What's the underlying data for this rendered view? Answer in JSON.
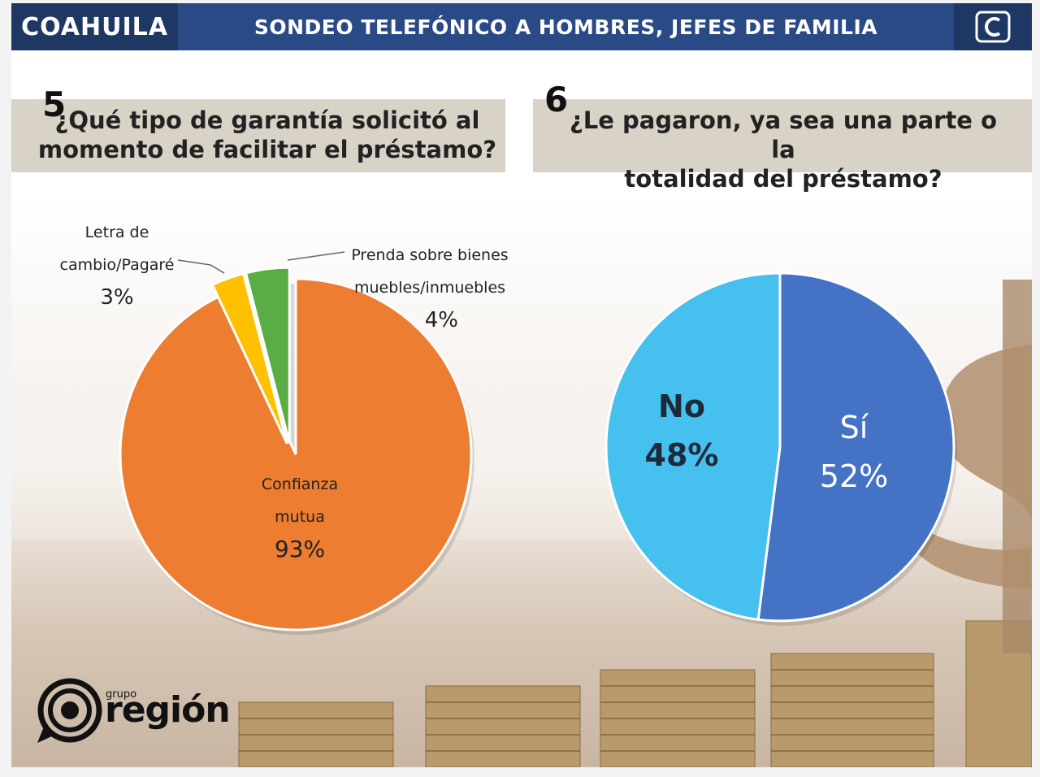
{
  "header": {
    "region": "COAHUILA",
    "title": "SONDEO TELEFÓNICO A HOMBRES, JEFES DE FAMILIA"
  },
  "colors": {
    "header_bg": "#2a4a86",
    "header_dark": "#1f3763",
    "question_box": "#d9d2c7",
    "orange": "#ed7d31",
    "yellow": "#ffc000",
    "green": "#5aac44",
    "dark_blue": "#4472c4",
    "light_blue": "#45c0ef"
  },
  "q5": {
    "number": "5",
    "line1": "¿Qué tipo de garantía solicitó al",
    "line2": "momento de facilitar el préstamo?"
  },
  "q6": {
    "number": "6",
    "line1": "¿Le pagaron, ya sea una parte o la",
    "line2": "totalidad del préstamo?"
  },
  "chart_data": [
    {
      "type": "pie",
      "title": "¿Qué tipo de garantía solicitó al momento de facilitar el préstamo?",
      "slices": [
        {
          "label": "Prenda sobre bienes muebles/inmuebles",
          "label_line1": "Prenda sobre bienes",
          "label_line2": "muebles/inmuebles",
          "value": 4,
          "display": "4%",
          "color": "#5aac44"
        },
        {
          "label": "Letra de cambio/Pagaré",
          "label_line1": "Letra de",
          "label_line2": "cambio/Pagaré",
          "value": 3,
          "display": "3%",
          "color": "#ffc000"
        },
        {
          "label": "Confianza mutua",
          "label_line1": "Confianza",
          "label_line2": "mutua",
          "value": 93,
          "display": "93%",
          "color": "#ed7d31"
        }
      ]
    },
    {
      "type": "pie",
      "title": "¿Le pagaron, ya sea una parte o la totalidad del préstamo?",
      "slices": [
        {
          "label": "Sí",
          "value": 52,
          "display": "52%",
          "color": "#4472c4"
        },
        {
          "label": "No",
          "value": 48,
          "display": "48%",
          "color": "#45c0ef"
        }
      ]
    }
  ],
  "brand": {
    "small": "grupo",
    "name": "región"
  }
}
